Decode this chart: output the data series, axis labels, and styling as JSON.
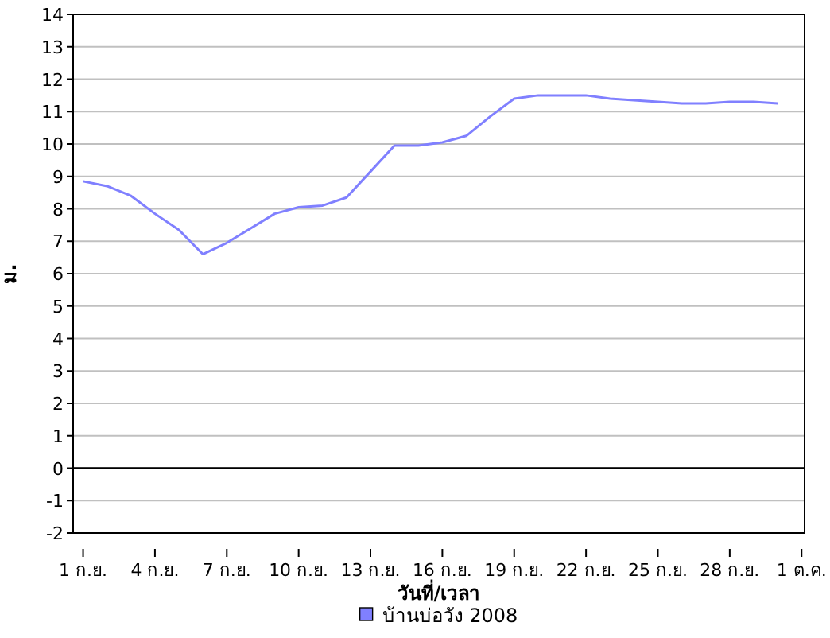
{
  "chart_data": {
    "type": "line",
    "xlabel": "วันที่/เวลา",
    "ylabel": "ม.",
    "x": [
      "2008-09-01",
      "2008-09-02",
      "2008-09-03",
      "2008-09-04",
      "2008-09-05",
      "2008-09-06",
      "2008-09-07",
      "2008-09-08",
      "2008-09-09",
      "2008-09-10",
      "2008-09-11",
      "2008-09-12",
      "2008-09-13",
      "2008-09-14",
      "2008-09-15",
      "2008-09-16",
      "2008-09-17",
      "2008-09-18",
      "2008-09-19",
      "2008-09-20",
      "2008-09-21",
      "2008-09-22",
      "2008-09-23",
      "2008-09-24",
      "2008-09-25",
      "2008-09-26",
      "2008-09-27",
      "2008-09-28",
      "2008-09-29",
      "2008-09-30"
    ],
    "series": [
      {
        "name": "บ้านบ่อวัง 2008",
        "color": "#8080ff",
        "values": [
          8.85,
          8.7,
          8.4,
          7.85,
          7.35,
          6.6,
          6.95,
          7.4,
          7.85,
          8.05,
          8.1,
          8.35,
          9.15,
          9.95,
          9.95,
          10.05,
          10.25,
          10.85,
          11.4,
          11.5,
          11.5,
          11.5,
          11.4,
          11.35,
          11.3,
          11.25,
          11.25,
          11.3,
          11.3,
          11.25
        ]
      }
    ],
    "xlim": [
      "2008-08-31T14:00",
      "2008-10-01T03:00"
    ],
    "xticks": [
      {
        "value": "2008-09-01",
        "label": "1 ก.ย."
      },
      {
        "value": "2008-09-04",
        "label": "4 ก.ย."
      },
      {
        "value": "2008-09-07",
        "label": "7 ก.ย."
      },
      {
        "value": "2008-09-10",
        "label": "10 ก.ย."
      },
      {
        "value": "2008-09-13",
        "label": "13 ก.ย."
      },
      {
        "value": "2008-09-16",
        "label": "16 ก.ย."
      },
      {
        "value": "2008-09-19",
        "label": "19 ก.ย."
      },
      {
        "value": "2008-09-22",
        "label": "22 ก.ย."
      },
      {
        "value": "2008-09-25",
        "label": "25 ก.ย."
      },
      {
        "value": "2008-09-28",
        "label": "28 ก.ย."
      },
      {
        "value": "2008-10-01",
        "label": "1 ต.ค."
      }
    ],
    "ylim": [
      -2,
      14
    ],
    "yticks": [
      -2,
      -1,
      0,
      1,
      2,
      3,
      4,
      5,
      6,
      7,
      8,
      9,
      10,
      11,
      12,
      13,
      14
    ],
    "ref_lines": [
      {
        "axis": "y",
        "value": 0,
        "color": "#000000"
      }
    ],
    "grid": "y",
    "legend": "bottom",
    "marker": "none",
    "line_style": "solid"
  }
}
